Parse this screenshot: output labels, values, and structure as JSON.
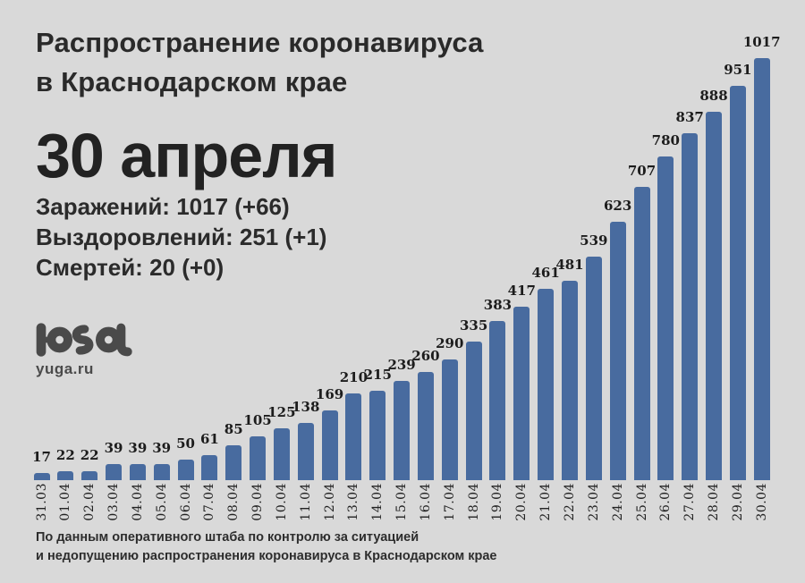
{
  "header": {
    "title_line1": "Распространение коронавируса",
    "title_line2": "в Краснодарском крае",
    "date_heading": "30 апреля",
    "stats": {
      "infections": "Заражений: 1017 (+66)",
      "recoveries": "Выздоровлений: 251 (+1)",
      "deaths": "Смертей: 20 (+0)"
    }
  },
  "logo": {
    "name": "yuga-logo",
    "site": "yuga.ru"
  },
  "footer": {
    "line1": "По данным оперативного штаба по контролю за ситуацией",
    "line2": "и недопущению распространения коронавируса в Краснодарском крае"
  },
  "colors": {
    "background": "#d9d9d9",
    "bar": "#486b9f",
    "text": "#262626"
  },
  "chart_data": {
    "type": "bar",
    "title": "Распространение коронавируса в Краснодарском крае",
    "xlabel": "",
    "ylabel": "",
    "ylim": [
      0,
      1017
    ],
    "grid": false,
    "legend": false,
    "bar_labels": true,
    "x_tick_rotation": 90,
    "categories": [
      "31.03",
      "01.04",
      "02.04",
      "03.04",
      "04.04",
      "05.04",
      "06.04",
      "07.04",
      "08.04",
      "09.04",
      "10.04",
      "11.04",
      "12.04",
      "13.04",
      "14.04",
      "15.04",
      "16.04",
      "17.04",
      "18.04",
      "19.04",
      "20.04",
      "21.04",
      "22.04",
      "23.04",
      "24.04",
      "25.04",
      "26.04",
      "27.04",
      "28.04",
      "29.04",
      "30.04"
    ],
    "values": [
      17,
      22,
      22,
      39,
      39,
      39,
      50,
      61,
      85,
      105,
      125,
      138,
      169,
      210,
      215,
      239,
      260,
      290,
      335,
      383,
      417,
      461,
      481,
      539,
      623,
      707,
      780,
      837,
      888,
      951,
      1017
    ]
  }
}
